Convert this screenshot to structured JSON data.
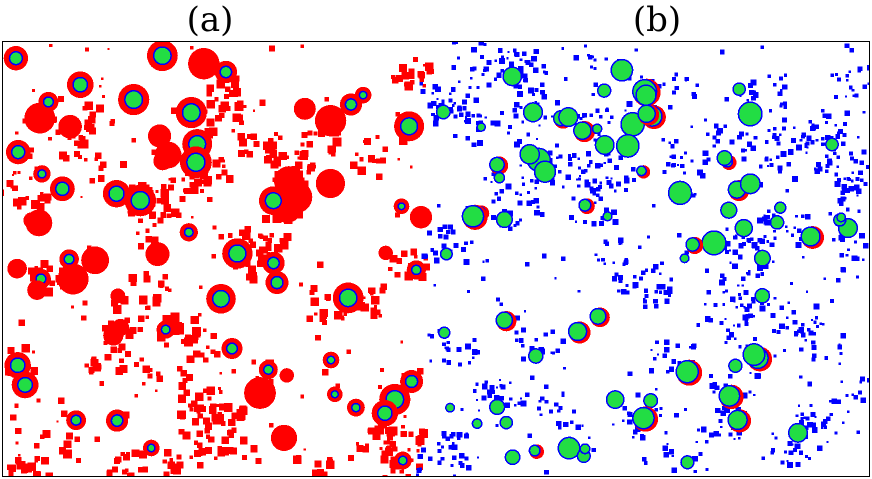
{
  "panels": [
    {
      "id": "a",
      "label": "(a)"
    },
    {
      "id": "b",
      "label": "(b)"
    }
  ],
  "colors": {
    "red_phase": "#ff0000",
    "blue_phase": "#0000ff",
    "green_core": "#22dd44",
    "background": "#ffffff",
    "border": "#000000"
  }
}
